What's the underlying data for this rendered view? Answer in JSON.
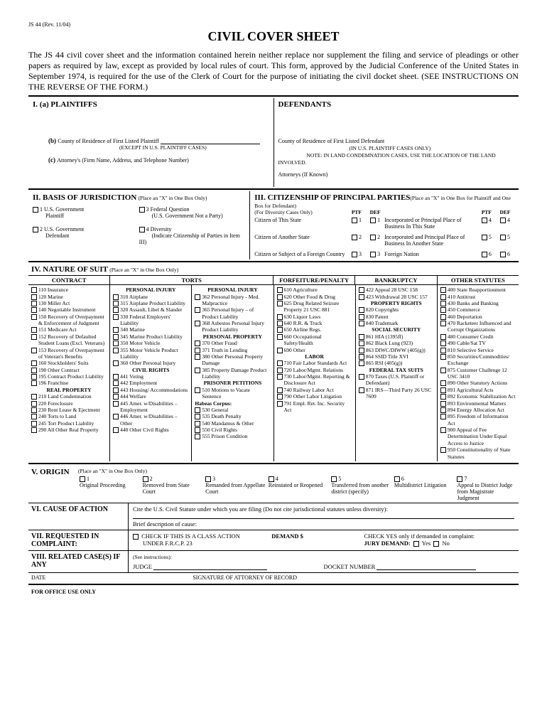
{
  "formId": "JS 44 (Rev. 11/04)",
  "title": "CIVIL COVER SHEET",
  "intro": "The JS 44 civil cover sheet and the information contained herein neither replace nor supplement the filing and service of pleadings or other papers as required by law, except as provided by local rules of court. This form, approved by the Judicial Conference of the United States in September 1974, is required for the use of the Clerk of Court for the purpose of initiating the civil docket sheet. (SEE INSTRUCTIONS ON THE REVERSE OF THE FORM.)",
  "s1": {
    "aLabel": "I.   (a)   PLAINTIFFS",
    "defLabel": "DEFENDANTS",
    "bLabel": "(b)",
    "bText": "County of Residence of First Listed Plaintiff",
    "bNote": "(EXCEPT IN U.S. PLAINTIFF CASES)",
    "defCounty": "County of Residence of First Listed Defendant",
    "defNote1": "(IN U.S. PLAINTIFF CASES ONLY)",
    "defNote2": "NOTE:   IN LAND CONDEMNATION CASES, USE THE LOCATION OF THE LAND INVOLVED.",
    "cLabel": "(c)",
    "cText": "Attorney's (Firm Name, Address, and Telephone Number)",
    "defAtty": "Attorneys (If Known)"
  },
  "s2": {
    "title": "II. BASIS OF JURISDICTION",
    "hint": "(Place an \"X\" in One Box Only)",
    "opt1a": "1 U.S. Government",
    "opt1b": "Plaintiff",
    "opt2a": "2 U.S. Government",
    "opt2b": "Defendant",
    "opt3a": "3 Federal Question",
    "opt3b": "(U.S. Government Not a Party)",
    "opt4a": "4 Diversity",
    "opt4b": "(Indicate Citizenship of Parties in Item III)"
  },
  "s3": {
    "title": "III. CITIZENSHIP OF PRINCIPAL PARTIES",
    "hint": "(Place an \"X\" in One Box for Plaintiff and One Box for Defendant)",
    "sub": "(For Diversity Cases Only)",
    "ptf": "PTF",
    "def": "DEF",
    "r1": "Citizen of This State",
    "r1b": "Incorporated or Principal Place of Business In This State",
    "r2": "Citizen of Another State",
    "r2b": "Incorporated and Principal Place of Business In Another State",
    "r3": "Citizen or Subject of a Foreign Country",
    "r3b": "Foreign Nation"
  },
  "s4": {
    "title": "IV. NATURE OF SUIT",
    "hint": "(Place an \"X\" in One Box Only)",
    "hdrs": [
      "CONTRACT",
      "TORTS",
      "FORFEITURE/PENALTY",
      "BANKRUPTCY",
      "OTHER STATUTES"
    ],
    "contract": [
      "110 Insurance",
      "120 Marine",
      "130 Miller Act",
      "140 Negotiable Instrument",
      "150 Recovery of Overpayment & Enforcement of Judgment",
      "151 Medicare Act",
      "152 Recovery of Defaulted Student Loans (Excl. Veterans)",
      "153 Recovery of Overpayment of Veteran's Benefits",
      "160 Stockholders' Suits",
      "190 Other Contract",
      "195 Contract Product Liability",
      "196 Franchise"
    ],
    "realprop_hdr": "REAL PROPERTY",
    "realprop": [
      "210 Land Condemnation",
      "220 Foreclosure",
      "230 Rent Lease & Ejectment",
      "240 Torts to Land",
      "245 Tort Product Liability",
      "290 All Other Real Property"
    ],
    "tortsA_hdr": "PERSONAL INJURY",
    "tortsA": [
      "310 Airplane",
      "315 Airplane Product Liability",
      "320 Assault, Libel & Slander",
      "330 Federal Employers' Liability",
      "340 Marine",
      "345 Marine Product Liability",
      "350 Motor Vehicle",
      "355 Motor Vehicle Product Liability",
      "360 Other Personal Injury"
    ],
    "civilrights_hdr": "CIVIL RIGHTS",
    "civilrights": [
      "441 Voting",
      "442 Employment",
      "443 Housing/ Accommodations",
      "444 Welfare",
      "445 Amer. w/Disabilities – Employment",
      "446 Amer. w/Disabilities – Other",
      "440 Other Civil Rights"
    ],
    "tortsB_hdr": "PERSONAL INJURY",
    "tortsB": [
      "362 Personal Injury - Med. Malpractice",
      "365 Personal Injury – of Product Liability",
      "368 Asbestos Personal Injury Product Liability"
    ],
    "pprop_hdr": "PERSONAL PROPERTY",
    "pprop": [
      "370 Other Fraud",
      "371 Truth in Lending",
      "380 Other Personal Property Damage",
      "385 Property Damage Product Liability"
    ],
    "prisoner_hdr": "PRISONER PETITIONS",
    "prisoner1": [
      "510 Motions to Vacate Sentence"
    ],
    "habeas": "Habeas Corpus:",
    "prisoner2": [
      "530 General",
      "535 Death Penalty",
      "540 Mandamus & Other",
      "550 Civil Rights",
      "555 Prison Condition"
    ],
    "forfeiture": [
      "610 Agriculture",
      "620 Other Food & Drug",
      "625 Drug Related Seizure Property 21 USC 881",
      "630 Liquor Laws",
      "640 R.R. & Truck",
      "650 Airline Regs.",
      "660 Occupational Safety/Health",
      "690 Other"
    ],
    "labor_hdr": "LABOR",
    "labor": [
      "710 Fair Labor Standards Act",
      "720 Labor/Mgmt. Relations",
      "730 Labor/Mgmt. Reporting & Disclosure Act",
      "740 Railway Labor Act",
      "790 Other Labor Litigation",
      "791 Empl. Ret. Inc. Security Act"
    ],
    "bankruptcy": [
      "422 Appeal 28 USC 158",
      "423 Withdrawal 28 USC 157"
    ],
    "proprights_hdr": "PROPERTY RIGHTS",
    "proprights": [
      "820 Copyrights",
      "830 Patent",
      "840 Trademark"
    ],
    "socsec_hdr": "SOCIAL SECURITY",
    "socsec": [
      "861 HIA (1395ff)",
      "862 Black Lung (923)",
      "863 DIWC/DIWW (405(g))",
      "864 SSID Title XVI",
      "865 RSI (405(g))"
    ],
    "fedtax_hdr": "FEDERAL TAX SUITS",
    "fedtax": [
      "870 Taxes (U.S. Plaintiff or Defendant)",
      "871 IRS—Third Party 26 USC 7609"
    ],
    "other": [
      "400 State Reapportionment",
      "410 Antitrust",
      "430 Banks and Banking",
      "450 Commerce",
      "460 Deportation",
      "470 Racketeer Influenced and Corrupt Organizations",
      "480 Consumer Credit",
      "490 Cable/Sat TV",
      "810 Selective Service",
      "850 Securities/Commodities/ Exchange",
      "875 Customer Challenge 12 USC 3410",
      "890 Other Statutory Actions",
      "891 Agricultural Acts",
      "892 Economic Stabilization Act",
      "893 Environmental Matters",
      "894 Energy Allocation Act",
      "895 Freedom of Information Act",
      "900 Appeal of Fee Determination Under Equal Access to Justice",
      "950 Constitutionality of State Statutes"
    ]
  },
  "s5": {
    "title": "V. ORIGIN",
    "hint": "(Place an \"X\" in One Box Only)",
    "opts": [
      "Original Proceeding",
      "Removed from State Court",
      "Remanded from Appellate Court",
      "Reinstated or Reopened",
      "Transferred from another district (specify)",
      "Multidistrict Litigation",
      "Appeal to District Judge from Magistrate Judgment"
    ]
  },
  "s6": {
    "title": "VI. CAUSE OF ACTION",
    "l1": "Cite the U.S. Civil Statute under which you are filing (Do not cite jurisdictional statutes unless diversity):",
    "l2": "Brief description of cause:"
  },
  "s7": {
    "title": "VII. REQUESTED IN COMPLAINT:",
    "classAction": "CHECK IF THIS IS A CLASS ACTION",
    "frcp": "UNDER F.R.C.P. 23",
    "demand": "DEMAND $",
    "jury1": "CHECK YES only if demanded in complaint:",
    "jury2": "JURY DEMAND:",
    "yes": "Yes",
    "no": "No"
  },
  "s8": {
    "title": "VIII. RELATED CASE(S) IF ANY",
    "see": "(See instructions):",
    "judge": "JUDGE",
    "docket": "DOCKET NUMBER"
  },
  "footer": {
    "date": "DATE",
    "sig": "SIGNATURE OF ATTORNEY OF RECORD",
    "office": "FOR OFFICE USE ONLY"
  }
}
